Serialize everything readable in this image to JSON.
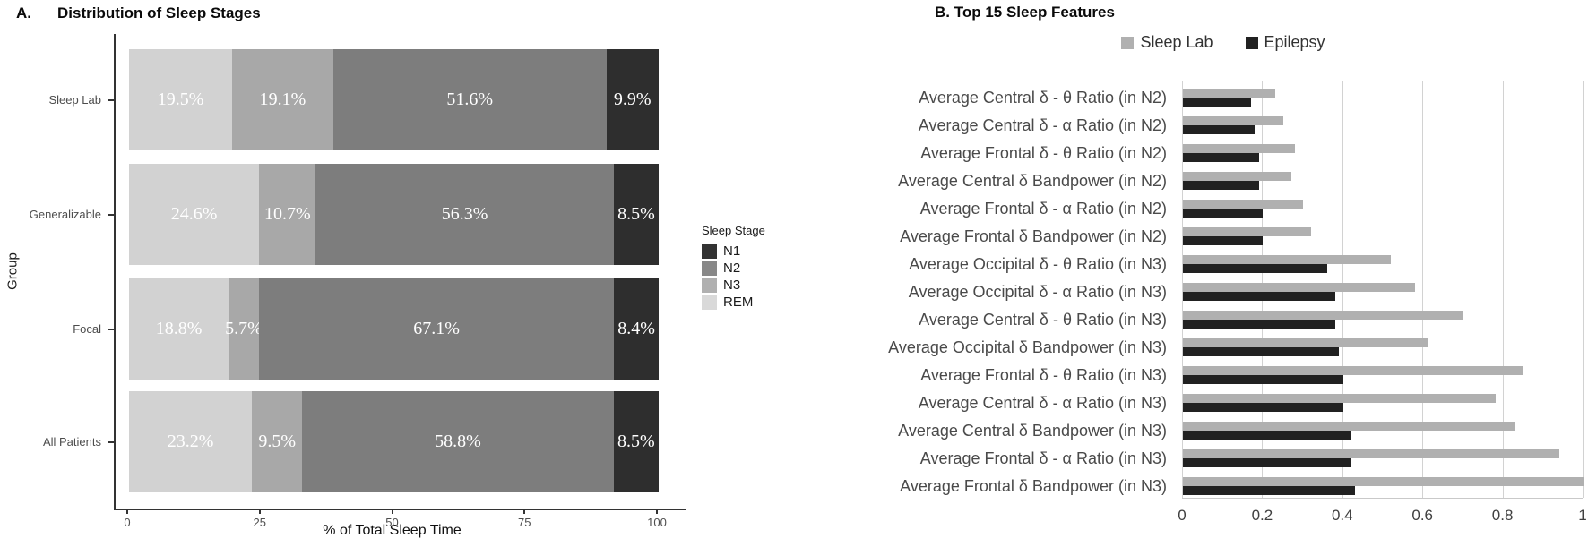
{
  "panel_a": {
    "label": "A.",
    "title": "Distribution of Sleep Stages",
    "xlabel": "% of Total Sleep Time",
    "ylabel": "Group",
    "legend_title": "Sleep Stage"
  },
  "panel_b": {
    "title": "B. Top 15 Sleep Features"
  },
  "chart_data": [
    {
      "id": "sleep-stage-distribution",
      "type": "bar",
      "orientation": "horizontal",
      "stacked": true,
      "title": "A. Distribution of Sleep Stages",
      "xlabel": "% of Total Sleep Time",
      "ylabel": "Group",
      "xlim": [
        0,
        100
      ],
      "xticks": [
        "0",
        "25",
        "50",
        "75",
        "100"
      ],
      "grid": false,
      "legend_title": "Sleep Stage",
      "legend_position": "right",
      "legend_order": [
        "N1",
        "N2",
        "N3",
        "REM"
      ],
      "categories": [
        "Sleep Lab",
        "Generalizable",
        "Focal",
        "All Patients"
      ],
      "series": [
        {
          "name": "REM",
          "color": "#d2d2d2",
          "legend_color": "#d9d9d9",
          "values": [
            19.5,
            24.6,
            18.8,
            23.2
          ]
        },
        {
          "name": "N3",
          "color": "#a8a8a8",
          "legend_color": "#b0b0b0",
          "values": [
            19.1,
            10.7,
            5.7,
            9.5
          ]
        },
        {
          "name": "N2",
          "color": "#7d7d7d",
          "legend_color": "#888888",
          "values": [
            51.6,
            56.3,
            67.1,
            58.8
          ]
        },
        {
          "name": "N1",
          "color": "#2e2e2e",
          "legend_color": "#333333",
          "values": [
            9.9,
            8.5,
            8.4,
            8.5
          ]
        }
      ],
      "bar_label_format": "{value}%",
      "bar_label_color": "#ffffff"
    },
    {
      "id": "top-sleep-features",
      "type": "bar",
      "orientation": "horizontal",
      "grouped": true,
      "title": "B. Top 15 Sleep Features",
      "xlabel": "",
      "ylabel": "",
      "xlim": [
        0,
        1
      ],
      "xticks": [
        "0",
        "0.2",
        "0.4",
        "0.6",
        "0.8",
        "1"
      ],
      "grid": true,
      "legend_position": "top",
      "categories": [
        "Average Central δ - θ Ratio (in N2)",
        "Average Central δ - α Ratio (in N2)",
        "Average Frontal δ - θ Ratio (in N2)",
        "Average Central δ Bandpower (in N2)",
        "Average Frontal δ - α Ratio (in N2)",
        "Average Frontal δ Bandpower (in N2)",
        "Average Occipital δ - θ Ratio (in N3)",
        "Average Occipital δ - α Ratio (in N3)",
        "Average Central δ - θ Ratio (in N3)",
        "Average Occipital δ Bandpower (in N3)",
        "Average Frontal δ - θ Ratio (in N3)",
        "Average Central δ - α Ratio (in N3)",
        "Average Central δ Bandpower (in N3)",
        "Average Frontal δ - α Ratio (in N3)",
        "Average Frontal δ Bandpower (in N3)"
      ],
      "series": [
        {
          "name": "Sleep Lab",
          "color": "#b0b0b0",
          "values": [
            0.23,
            0.25,
            0.28,
            0.27,
            0.3,
            0.32,
            0.52,
            0.58,
            0.7,
            0.61,
            0.85,
            0.78,
            0.83,
            0.94,
            1.0
          ]
        },
        {
          "name": "Epilepsy",
          "color": "#212121",
          "values": [
            0.17,
            0.18,
            0.19,
            0.19,
            0.2,
            0.2,
            0.36,
            0.38,
            0.38,
            0.39,
            0.4,
            0.4,
            0.42,
            0.42,
            0.43
          ]
        }
      ]
    }
  ]
}
